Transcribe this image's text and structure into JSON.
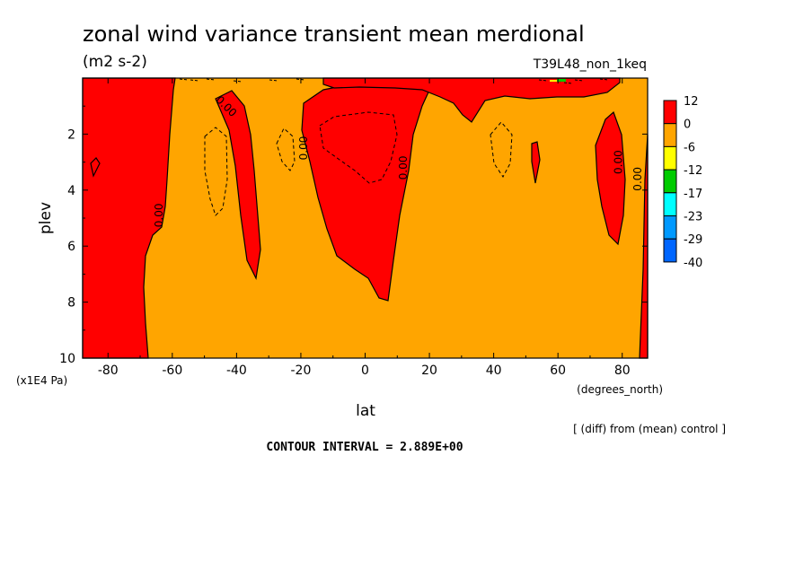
{
  "chart_data": {
    "type": "filled-contour",
    "title": "zonal wind variance transient mean merdional",
    "units": "(m2 s-2)",
    "run_label": "T39L48_non_1keq",
    "xlabel": "lat",
    "x_units": "(degrees_north)",
    "ylabel": "plev",
    "y_units": "(x1E4 Pa)",
    "xlim": [
      -87.9,
      87.9
    ],
    "ylim": [
      10,
      0
    ],
    "x_ticks": [
      -80,
      -60,
      -40,
      -20,
      0,
      20,
      40,
      60,
      80
    ],
    "x_tick_labels": [
      "-80",
      "-60",
      "-40",
      "-20",
      "0",
      "20",
      "40",
      "60",
      "80"
    ],
    "y_ticks": [
      2,
      4,
      6,
      8,
      10
    ],
    "y_tick_labels": [
      "2",
      "4",
      "6",
      "8",
      "10"
    ],
    "contour_labels": [
      {
        "text": "0.00",
        "lat": -44,
        "plev": 1.1
      },
      {
        "text": "0.00",
        "lat": -63,
        "plev": 4.9
      },
      {
        "text": "0.00",
        "lat": -18,
        "plev": 2.5
      },
      {
        "text": "0.00",
        "lat": 13,
        "plev": 3.2
      },
      {
        "text": "0.00",
        "lat": 80,
        "plev": 3.0
      },
      {
        "text": "0.00",
        "lat": 86,
        "plev": 3.6
      }
    ],
    "legend": {
      "labels": [
        "12",
        "0",
        "-6",
        "-12",
        "-17",
        "-23",
        "-29",
        "-40"
      ],
      "colors": [
        "#ff0000",
        "#ffa500",
        "#ffff00",
        "#00cc00",
        "#00ffff",
        "#0099ff",
        "#0066ff"
      ]
    },
    "annotation_diff": "[ (diff) from (mean) control ]",
    "contour_interval": "CONTOUR INTERVAL = 2.889E+00",
    "region_colors": {
      "positive": "#ff0000",
      "negative": "#ffa500"
    }
  }
}
